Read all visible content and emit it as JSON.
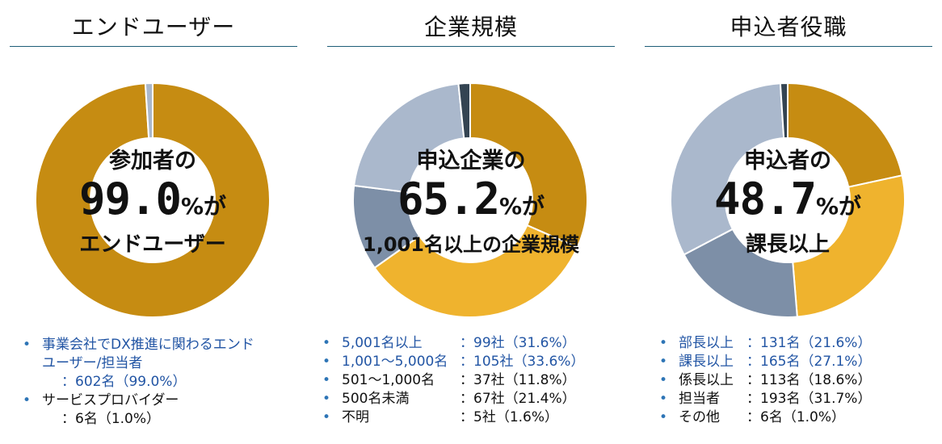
{
  "panels": [
    {
      "title": "エンドユーザー",
      "center": {
        "line1": "参加者の",
        "value": "99.0",
        "unit": "%が",
        "line3": "エンドユーザー"
      },
      "legend": [
        {
          "label_lines": [
            "事業会社でDX推進に関わるエンド",
            "ユーザー/担当者"
          ],
          "value": "：602名（99.0%）",
          "color": "blue"
        },
        {
          "label_lines": [
            "サービスプロバイダー"
          ],
          "value": "：6名（1.0%）",
          "color": "black"
        }
      ]
    },
    {
      "title": "企業規模",
      "center": {
        "line1": "申込企業の",
        "value": "65.2",
        "unit": "%が",
        "line3": "1,001名以上の企業規模"
      },
      "legend": [
        {
          "label": "5,001名以上",
          "value": "：99社（31.6%）",
          "color": "blue"
        },
        {
          "label": "1,001～5,000名",
          "value": "：105社（33.6%）",
          "color": "blue"
        },
        {
          "label": "501～1,000名",
          "value": "：37社（11.8%）",
          "color": "black"
        },
        {
          "label": "500名未満",
          "value": "：67社（21.4%）",
          "color": "black"
        },
        {
          "label": "不明",
          "value": "：5社（1.6%）",
          "color": "black"
        }
      ]
    },
    {
      "title": "申込者役職",
      "center": {
        "line1": "申込者の",
        "value": "48.7",
        "unit": "%が",
        "line3": "課長以上"
      },
      "legend": [
        {
          "label": "部長以上",
          "value": "：131名（21.6%）",
          "color": "blue"
        },
        {
          "label": "課長以上",
          "value": "：165名（27.1%）",
          "color": "blue"
        },
        {
          "label": "係長以上",
          "value": "：113名（18.6%）",
          "color": "black"
        },
        {
          "label": "担当者",
          "value": "：193名（31.7%）",
          "color": "black"
        },
        {
          "label": "その他",
          "value": "：6名（1.0%）",
          "color": "black"
        }
      ]
    }
  ],
  "bullet_char": "•",
  "chart_data": [
    {
      "type": "pie",
      "title": "エンドユーザー",
      "categories": [
        "事業会社でDX推進に関わるエンドユーザー/担当者",
        "サービスプロバイダー"
      ],
      "values": [
        99.0,
        1.0
      ],
      "counts": [
        602,
        6
      ],
      "colors": [
        "#c68c12",
        "#aab8cc"
      ]
    },
    {
      "type": "pie",
      "title": "企業規模",
      "categories": [
        "5,001名以上",
        "1,001～5,000名",
        "501～1,000名",
        "500名未満",
        "不明"
      ],
      "values": [
        31.6,
        33.6,
        11.8,
        21.4,
        1.6
      ],
      "counts": [
        99,
        105,
        37,
        67,
        5
      ],
      "colors": [
        "#c68c12",
        "#efb32e",
        "#7d8fa7",
        "#aab8cc",
        "#344452"
      ]
    },
    {
      "type": "pie",
      "title": "申込者役職",
      "categories": [
        "部長以上",
        "課長以上",
        "係長以上",
        "担当者",
        "その他"
      ],
      "values": [
        21.6,
        27.1,
        18.6,
        31.7,
        1.0
      ],
      "counts": [
        131,
        165,
        113,
        193,
        6
      ],
      "colors": [
        "#c68c12",
        "#efb32e",
        "#7d8fa7",
        "#aab8cc",
        "#344452"
      ]
    }
  ]
}
